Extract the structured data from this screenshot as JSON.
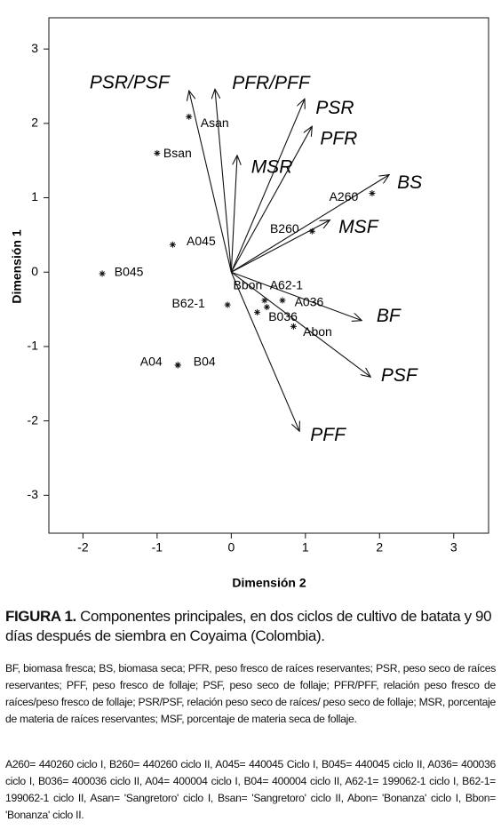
{
  "chart_data": {
    "type": "biplot",
    "xlabel": "Dimensión 2",
    "ylabel": "Dimensión 1",
    "xlim": [
      -2.46,
      3.47
    ],
    "ylim": [
      -3.51,
      3.42
    ],
    "xticks": [
      -2,
      -1,
      0,
      1,
      2,
      3
    ],
    "yticks": [
      -3,
      -2,
      -1,
      0,
      1,
      2,
      3
    ],
    "points": [
      {
        "name": "Asan",
        "x": -0.57,
        "y": 2.09
      },
      {
        "name": "Bsan",
        "x": -1.0,
        "y": 1.6
      },
      {
        "name": "A260",
        "x": 1.9,
        "y": 1.06
      },
      {
        "name": "B260",
        "x": 1.09,
        "y": 0.55
      },
      {
        "name": "A045",
        "x": -0.79,
        "y": 0.37
      },
      {
        "name": "B045",
        "x": -1.74,
        "y": -0.02
      },
      {
        "name": "Bbon",
        "x": 0.45,
        "y": -0.38
      },
      {
        "name": "A62-1",
        "x": 0.48,
        "y": -0.47
      },
      {
        "name": "A036",
        "x": 0.69,
        "y": -0.38
      },
      {
        "name": "B036",
        "x": 0.35,
        "y": -0.54
      },
      {
        "name": "B62-1",
        "x": -0.05,
        "y": -0.44
      },
      {
        "name": "Abon",
        "x": 0.84,
        "y": -0.73
      },
      {
        "name": "A04",
        "x": -0.72,
        "y": -1.25
      },
      {
        "name": "B04",
        "x": -0.72,
        "y": -1.25
      }
    ],
    "vectors": [
      {
        "name": "PSR/PSF",
        "x": -0.57,
        "y": 2.44
      },
      {
        "name": "PFR/PFF",
        "x": -0.22,
        "y": 2.46
      },
      {
        "name": "PSR",
        "x": 0.99,
        "y": 2.33
      },
      {
        "name": "PFR",
        "x": 1.09,
        "y": 1.96
      },
      {
        "name": "MSR",
        "x": 0.08,
        "y": 1.57
      },
      {
        "name": "BS",
        "x": 2.13,
        "y": 1.31
      },
      {
        "name": "MSF",
        "x": 1.33,
        "y": 0.7
      },
      {
        "name": "BF",
        "x": 1.76,
        "y": -0.65
      },
      {
        "name": "PSF",
        "x": 1.88,
        "y": -1.41
      },
      {
        "name": "PFF",
        "x": 0.92,
        "y": -2.14
      }
    ]
  },
  "caption": {
    "label": "FIGURA 1.",
    "text": "Componentes principales, en dos ciclos de cultivo de batata y 90 días después de siembra en Coyaima (Colombia)."
  },
  "notes": [
    "BF, biomasa fresca; BS, biomasa seca; PFR, peso fresco de raíces reservantes; PSR, peso seco de raíces reservantes; PFF, peso fresco de follaje; PSF, peso seco de follaje; PFR/PFF, relación peso fresco de raíces/peso fresco de follaje; PSR/PSF, relación peso seco de raíces/ peso seco de follaje; MSR, porcentaje de materia de raíces reservantes; MSF, porcentaje de materia seca de follaje.",
    "A260= 440260 ciclo I, B260= 440260 ciclo II, A045= 440045 Ciclo I, B045= 440045 ciclo II, A036= 400036 ciclo I, B036= 400036 ciclo II, A04= 400004 ciclo I, B04= 400004 ciclo II, A62-1= 199062-1 ciclo I, B62-1= 199062-1 ciclo II, Asan= 'Sangretoro' ciclo I, Bsan= 'Sangretoro' ciclo II, Abon= 'Bonanza' ciclo I, Bbon= 'Bonanza' ciclo II."
  ]
}
